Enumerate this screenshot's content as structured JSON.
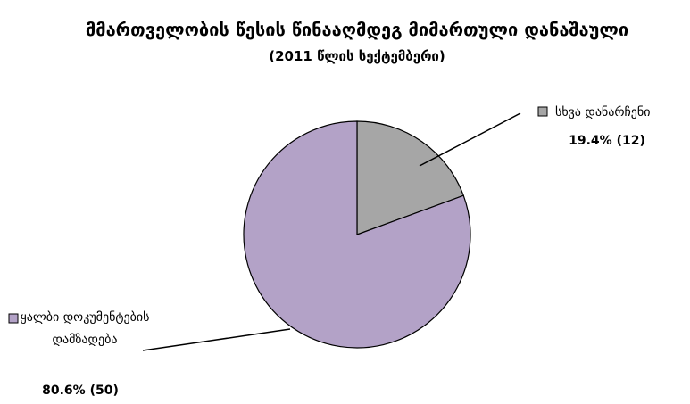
{
  "chart_data": {
    "type": "pie",
    "title": "მმართველობის წესის წინააღმდეგ მიმართული დანაშაული",
    "subtitle": "(2011 წლის სექტემბერი)",
    "categories": [
      "სხვა დანარჩენი",
      "ყალბი დოკუმენტების დამზადება"
    ],
    "values": [
      19.4,
      80.6
    ],
    "value_labels": [
      "19.4% (12)",
      "80.6% (50)"
    ],
    "colors": [
      "#a6a6a6",
      "#b3a2c7"
    ]
  }
}
